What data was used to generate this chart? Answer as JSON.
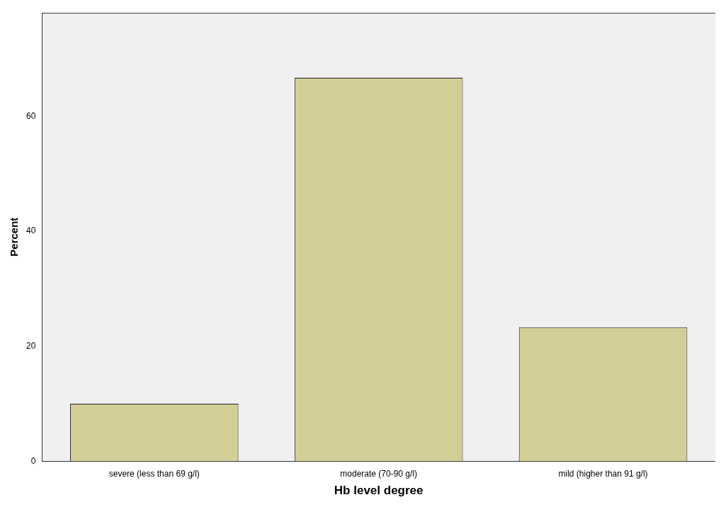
{
  "chart_data": {
    "type": "bar",
    "xlabel": "Hb level degree",
    "ylabel": "Percent",
    "categories": [
      "severe (less than 69 g/l)",
      "moderate (70-90 g/l)",
      "mild (higher than 91 g/l)"
    ],
    "values": [
      10,
      66.7,
      23.3
    ],
    "color": "#d3ce97",
    "ylim": [
      0,
      78
    ],
    "yticks": [
      0,
      20,
      40,
      60
    ],
    "grid": false,
    "legend": false
  }
}
